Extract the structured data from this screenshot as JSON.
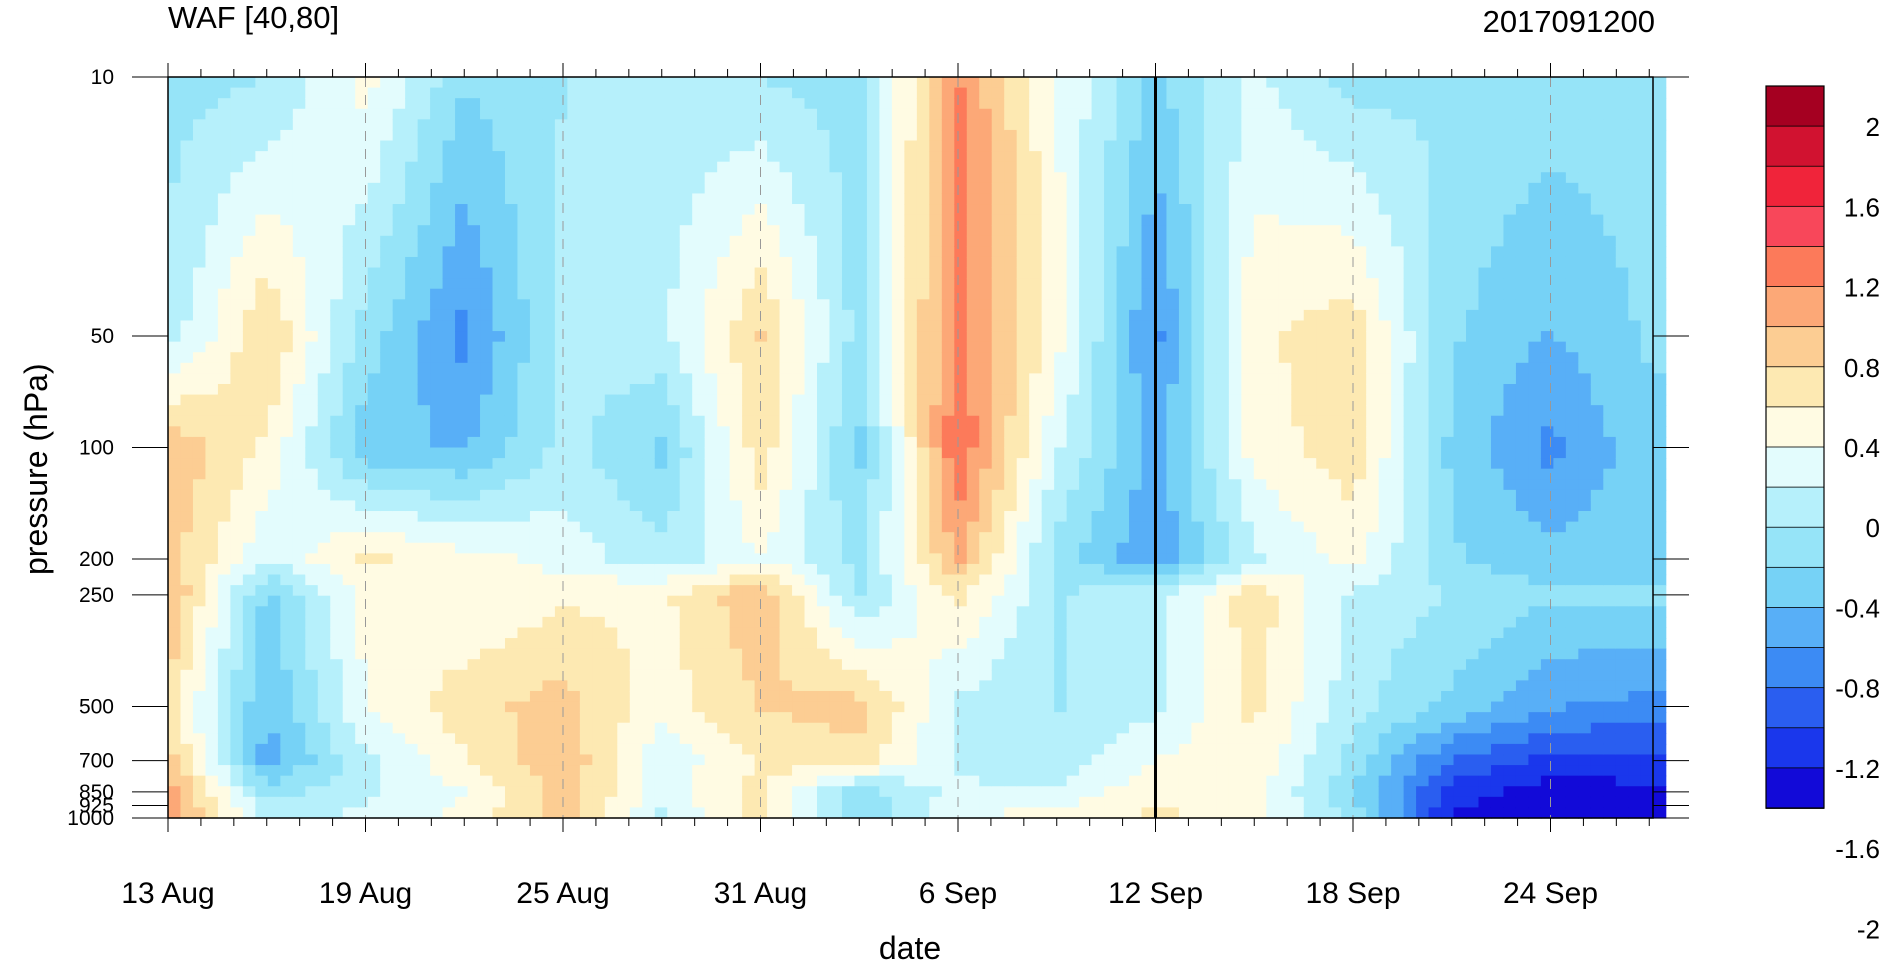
{
  "chart_data": {
    "type": "heatmap",
    "title": "WAF [40,80]",
    "subtitle": "2017091200",
    "xlabel": "date",
    "ylabel": "pressure (hPa)",
    "x_ticks": [
      "13 Aug",
      "19 Aug",
      "25 Aug",
      "31 Aug",
      "6 Sep",
      "12 Sep",
      "18 Sep",
      "24 Sep"
    ],
    "x_range": [
      "2017-08-13",
      "2017-09-28"
    ],
    "y_scale": "log",
    "y_ticks": [
      10,
      50,
      100,
      200,
      250,
      500,
      700,
      850,
      925,
      1000
    ],
    "y_range": [
      1000,
      10
    ],
    "marker_date": "2017-09-12",
    "colorbar": {
      "labels": [
        "2",
        "1.6",
        "1.2",
        "0.8",
        "0.4",
        "0",
        "-0.4",
        "-0.8",
        "-1.2",
        "-1.6",
        "-2"
      ],
      "colors": [
        "#a50021",
        "#d11230",
        "#f0243a",
        "#f8475a",
        "#fc7a5a",
        "#fca877",
        "#fccd93",
        "#fde9b2",
        "#fffbe3",
        "#e3fcfd",
        "#b6f0fb",
        "#96e4f8",
        "#76d2f6",
        "#58aff7",
        "#3c8bf4",
        "#2a5ef0",
        "#1a37ec",
        "#120ad8"
      ],
      "min": -2.2,
      "max": 2.2
    },
    "grid_dates": [
      "13 Aug",
      "16 Aug",
      "19 Aug",
      "22 Aug",
      "25 Aug",
      "28 Aug",
      "31 Aug",
      "3 Sep",
      "6 Sep",
      "9 Sep",
      "12 Sep",
      "15 Sep",
      "18 Sep",
      "21 Sep",
      "24 Sep",
      "27 Sep"
    ],
    "grid_levels": [
      10,
      50,
      100,
      200,
      250,
      500,
      700,
      850,
      1000
    ],
    "values": [
      [
        -0.6,
        -0.5,
        0.1,
        -0.7,
        -0.5,
        -0.4,
        -0.5,
        -0.6,
        1.0,
        0.0,
        -0.8,
        -0.2,
        -0.6,
        -0.5,
        -0.6,
        -0.6
      ],
      [
        -0.4,
        0.5,
        -0.6,
        -1.3,
        -0.4,
        -0.3,
        0.5,
        -0.6,
        1.1,
        0.1,
        -1.3,
        0.2,
        0.4,
        -0.7,
        -1.0,
        -0.7
      ],
      [
        0.7,
        0.2,
        -0.9,
        -1.0,
        -0.4,
        -0.8,
        0.4,
        -0.8,
        1.2,
        -0.2,
        -1.1,
        0.1,
        0.4,
        -0.8,
        -1.3,
        -0.8
      ],
      [
        0.6,
        -0.2,
        0.3,
        0.1,
        -0.1,
        -0.4,
        0.0,
        -0.6,
        0.8,
        -0.6,
        -1.2,
        -0.3,
        0.1,
        -0.7,
        -0.9,
        -0.8
      ],
      [
        0.8,
        -0.8,
        0.1,
        0.0,
        0.2,
        0.2,
        0.7,
        -0.5,
        0.3,
        -0.5,
        -0.3,
        0.4,
        -0.3,
        -0.5,
        -0.7,
        -0.7
      ],
      [
        0.4,
        -1.0,
        0.0,
        0.4,
        0.6,
        0.1,
        0.5,
        0.6,
        -0.3,
        -0.5,
        -0.3,
        0.3,
        -0.4,
        -0.8,
        -1.2,
        -1.3
      ],
      [
        0.6,
        -1.1,
        -0.3,
        0.2,
        0.7,
        -0.2,
        0.3,
        0.4,
        -0.3,
        -0.4,
        0.0,
        0.2,
        -0.6,
        -1.5,
        -1.8,
        -1.8
      ],
      [
        0.9,
        -0.6,
        -0.3,
        0.0,
        0.6,
        -0.1,
        0.3,
        -0.6,
        -0.2,
        -0.2,
        0.2,
        0.1,
        -0.7,
        -1.8,
        -2.1,
        -2.0
      ],
      [
        0.9,
        -0.3,
        -0.2,
        0.1,
        0.6,
        -0.3,
        0.4,
        -0.7,
        0.0,
        0.1,
        0.3,
        0.1,
        -0.6,
        -2.0,
        -2.2,
        -2.1
      ]
    ]
  }
}
